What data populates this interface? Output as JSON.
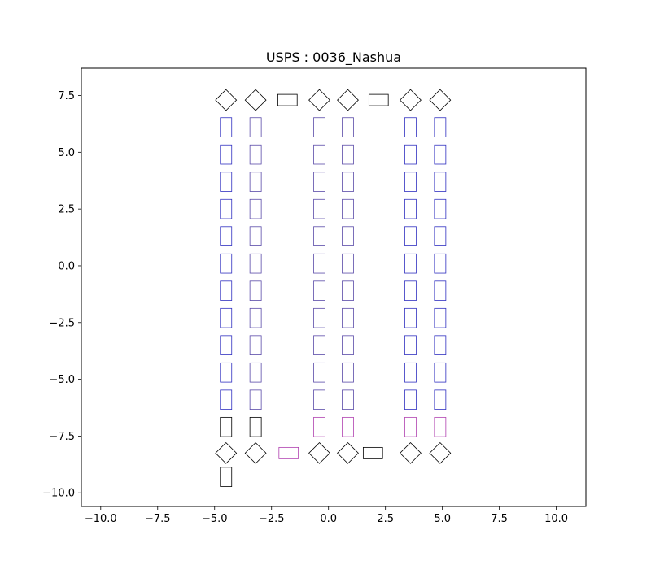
{
  "chart_data": {
    "type": "scatter",
    "title": "USPS : 0036_Nashua",
    "xlabel": "",
    "ylabel": "",
    "xlim": [
      -10.85,
      11.3
    ],
    "ylim": [
      -10.6,
      8.7
    ],
    "xticks": [
      -10.0,
      -7.5,
      -5.0,
      -2.5,
      0.0,
      2.5,
      5.0,
      7.5,
      10.0
    ],
    "yticks": [
      7.5,
      5.0,
      2.5,
      0.0,
      -2.5,
      -5.0,
      -7.5,
      -10.0
    ],
    "xtick_labels": [
      "−10.0",
      "−7.5",
      "−5.0",
      "−2.5",
      "0.0",
      "2.5",
      "5.0",
      "7.5",
      "10.0"
    ],
    "ytick_labels": [
      "7.5",
      "5.0",
      "2.5",
      "0.0",
      "−2.5",
      "−5.0",
      "−7.5",
      "−10.0"
    ],
    "grid": false,
    "colors": {
      "black": "#000000",
      "blue": "#3030c0",
      "purple": "#5a4aa8",
      "magenta": "#b040b0"
    },
    "column_x": [
      -4.5,
      -3.2,
      -0.4,
      0.85,
      3.6,
      4.9
    ],
    "column_rows_y": [
      6.1,
      4.9,
      3.7,
      2.5,
      1.3,
      0.1,
      -1.1,
      -2.3,
      -3.5,
      -4.7,
      -5.9,
      -7.1
    ],
    "column_row_colors": [
      [
        "blue",
        "blue",
        "blue",
        "blue",
        "blue",
        "blue",
        "blue",
        "blue",
        "blue",
        "blue",
        "blue",
        "black"
      ],
      [
        "purple",
        "purple",
        "purple",
        "purple",
        "purple",
        "purple",
        "purple",
        "purple",
        "purple",
        "purple",
        "purple",
        "black"
      ],
      [
        "purple",
        "purple",
        "purple",
        "purple",
        "purple",
        "purple",
        "purple",
        "purple",
        "purple",
        "purple",
        "purple",
        "magenta"
      ],
      [
        "purple",
        "purple",
        "purple",
        "purple",
        "purple",
        "purple",
        "purple",
        "purple",
        "purple",
        "purple",
        "purple",
        "magenta"
      ],
      [
        "blue",
        "blue",
        "blue",
        "blue",
        "blue",
        "blue",
        "blue",
        "blue",
        "blue",
        "blue",
        "blue",
        "magenta"
      ],
      [
        "blue",
        "blue",
        "blue",
        "blue",
        "blue",
        "blue",
        "blue",
        "blue",
        "blue",
        "blue",
        "blue",
        "magenta"
      ]
    ],
    "vertical_size": [
      0.5,
      0.85
    ],
    "horizontal_size": [
      0.85,
      0.5
    ],
    "diamond_size": 0.65,
    "top_diamonds": [
      {
        "x": -4.5,
        "y": 7.3
      },
      {
        "x": -3.2,
        "y": 7.3
      },
      {
        "x": -0.4,
        "y": 7.3
      },
      {
        "x": 0.85,
        "y": 7.3
      },
      {
        "x": 3.6,
        "y": 7.3
      },
      {
        "x": 4.9,
        "y": 7.3
      }
    ],
    "top_horizontals": [
      {
        "x": -1.8,
        "y": 7.3,
        "color": "black"
      },
      {
        "x": 2.2,
        "y": 7.3,
        "color": "black"
      }
    ],
    "bottom_diamonds": [
      {
        "x": -4.5,
        "y": -8.25
      },
      {
        "x": -3.2,
        "y": -8.25
      },
      {
        "x": -0.4,
        "y": -8.25
      },
      {
        "x": 0.85,
        "y": -8.25
      },
      {
        "x": 3.6,
        "y": -8.25
      },
      {
        "x": 4.9,
        "y": -8.25
      }
    ],
    "bottom_horizontals": [
      {
        "x": -1.75,
        "y": -8.25,
        "color": "magenta"
      },
      {
        "x": 1.95,
        "y": -8.25,
        "color": "black"
      }
    ],
    "extra_verticals": [
      {
        "x": -4.5,
        "y": -9.3,
        "color": "black"
      }
    ]
  }
}
